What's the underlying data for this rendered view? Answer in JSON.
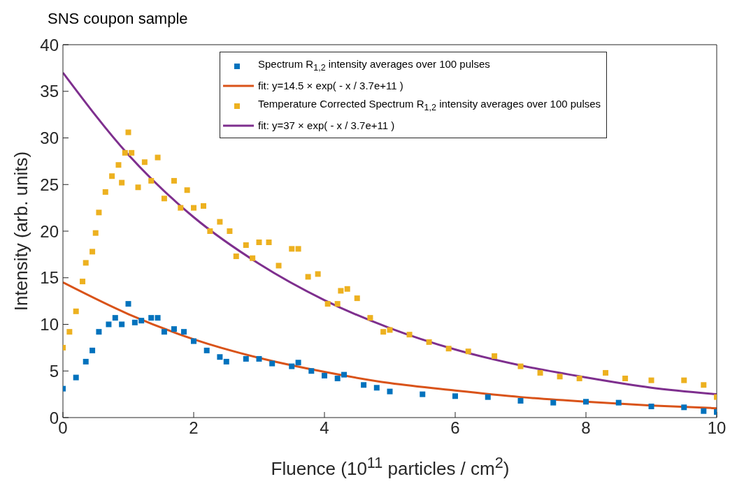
{
  "chart_data": {
    "type": "scatter",
    "title": "SNS coupon sample",
    "xlabel": "Fluence (10$^{11}$ particles / cm$^{2}$)",
    "ylabel": "Intensity (arb. units)",
    "xlim": [
      0,
      10
    ],
    "xticks": [
      0,
      2,
      4,
      6,
      8,
      10
    ],
    "ylim": [
      0,
      40
    ],
    "yticks": [
      0,
      5,
      10,
      15,
      20,
      25,
      30,
      35,
      40
    ],
    "grid": false,
    "legend": "top right",
    "series": [
      {
        "name": "Spectrum R$_{1,2}$ intensity averages over 100 pulses",
        "marker": "square",
        "color": "#0072bd",
        "x": [
          0,
          0.2,
          0.35,
          0.45,
          0.55,
          0.7,
          0.8,
          0.9,
          1.0,
          1.1,
          1.2,
          1.35,
          1.45,
          1.55,
          1.7,
          1.85,
          2.0,
          2.2,
          2.4,
          2.5,
          2.8,
          3.0,
          3.2,
          3.5,
          3.6,
          3.8,
          4.0,
          4.2,
          4.3,
          4.6,
          4.8,
          5.0,
          5.5,
          6.0,
          6.5,
          7.0,
          7.5,
          8.0,
          8.5,
          9.0,
          9.5,
          9.8,
          10
        ],
        "values": [
          3.1,
          4.3,
          6.0,
          7.2,
          9.2,
          10.0,
          10.7,
          10.0,
          12.2,
          10.2,
          10.4,
          10.7,
          10.7,
          9.2,
          9.5,
          9.2,
          8.2,
          7.2,
          6.5,
          6.0,
          6.3,
          6.3,
          5.8,
          5.5,
          5.9,
          5.0,
          4.5,
          4.2,
          4.6,
          3.5,
          3.2,
          2.8,
          2.5,
          2.3,
          2.2,
          1.8,
          1.6,
          1.7,
          1.6,
          1.2,
          1.1,
          0.7,
          0.6
        ]
      },
      {
        "name": "fit: y=14.5 × exp( - x / 3.7e+11 )",
        "type": "line",
        "marker": "none",
        "color": "#d95319",
        "x": [
          0,
          1,
          2,
          3,
          4,
          5,
          6,
          7,
          8,
          9,
          10
        ],
        "values": [
          14.5,
          11.1,
          8.4,
          6.4,
          4.9,
          3.7,
          2.9,
          2.2,
          1.7,
          1.3,
          1.0
        ]
      },
      {
        "name": "Temperature Corrected Spectrum R$_{1,2}$ intensity averages over 100 pulses",
        "marker": "square",
        "color": "#edb120",
        "x": [
          0,
          0.1,
          0.2,
          0.3,
          0.35,
          0.45,
          0.5,
          0.55,
          0.65,
          0.75,
          0.85,
          0.9,
          0.95,
          1.0,
          1.05,
          1.15,
          1.25,
          1.35,
          1.45,
          1.55,
          1.7,
          1.8,
          1.9,
          2.0,
          2.15,
          2.25,
          2.4,
          2.55,
          2.65,
          2.8,
          2.9,
          3.0,
          3.15,
          3.3,
          3.5,
          3.6,
          3.75,
          3.9,
          4.05,
          4.2,
          4.25,
          4.35,
          4.5,
          4.7,
          4.9,
          5.0,
          5.3,
          5.6,
          5.9,
          6.2,
          6.6,
          7.0,
          7.3,
          7.6,
          7.9,
          8.3,
          8.6,
          9.0,
          9.5,
          9.8,
          10
        ],
        "values": [
          7.5,
          9.2,
          11.4,
          14.6,
          16.6,
          17.8,
          19.8,
          22.0,
          24.2,
          25.9,
          27.1,
          25.2,
          28.4,
          30.6,
          28.4,
          24.7,
          27.4,
          25.4,
          27.9,
          23.5,
          25.4,
          22.5,
          24.4,
          22.5,
          22.7,
          20.0,
          21.0,
          20.0,
          17.3,
          18.5,
          17.1,
          18.8,
          18.8,
          16.3,
          18.1,
          18.1,
          15.1,
          15.4,
          12.2,
          12.2,
          13.6,
          13.8,
          12.8,
          10.7,
          9.2,
          9.4,
          8.9,
          8.1,
          7.4,
          7.1,
          6.6,
          5.5,
          4.8,
          4.4,
          4.2,
          4.8,
          4.2,
          4.0,
          4.0,
          3.5,
          2.2
        ]
      },
      {
        "name": "fit: y=37 × exp( - x / 3.7e+11 )",
        "type": "line",
        "marker": "none",
        "color": "#7e2f8e",
        "x": [
          0,
          1,
          2,
          3,
          4,
          5,
          6,
          7,
          8,
          9,
          10
        ],
        "values": [
          37,
          28.2,
          21.5,
          16.5,
          12.6,
          9.6,
          7.3,
          5.6,
          4.3,
          3.2,
          2.5
        ]
      }
    ]
  }
}
